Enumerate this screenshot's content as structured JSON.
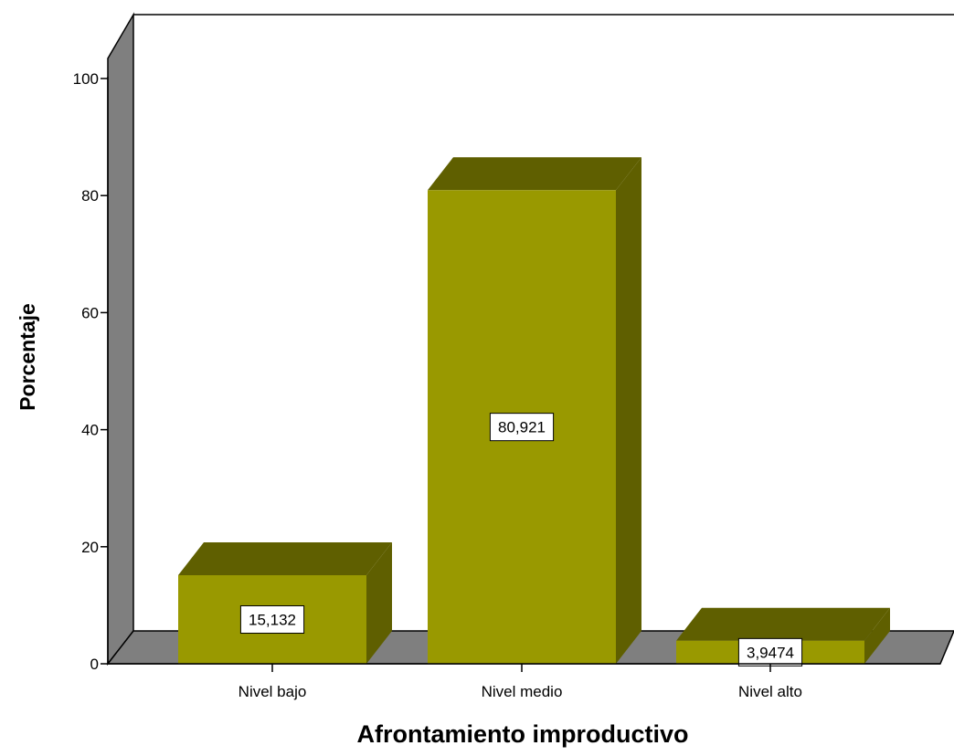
{
  "chart_data": {
    "type": "bar",
    "title": "",
    "xlabel": "Afrontamiento improductivo",
    "ylabel": "Porcentaje",
    "categories": [
      "Nivel bajo",
      "Nivel medio",
      "Nivel alto"
    ],
    "values": [
      15.132,
      80.921,
      3.9474
    ],
    "value_labels": [
      "15,132",
      "80,921",
      "3,9474"
    ],
    "ylim": [
      0,
      100
    ],
    "yticks": [
      0,
      20,
      40,
      60,
      80,
      100
    ],
    "ytick_labels": [
      "0",
      "20",
      "40",
      "60",
      "80",
      "100"
    ],
    "grid": false,
    "style": "3d",
    "colors": {
      "bar_front": "#999900",
      "bar_top": "#5f5f00",
      "bar_side": "#5f5f00",
      "wall": "#7f7f7f",
      "floor": "#7f7f7f",
      "frame": "#000000"
    }
  }
}
